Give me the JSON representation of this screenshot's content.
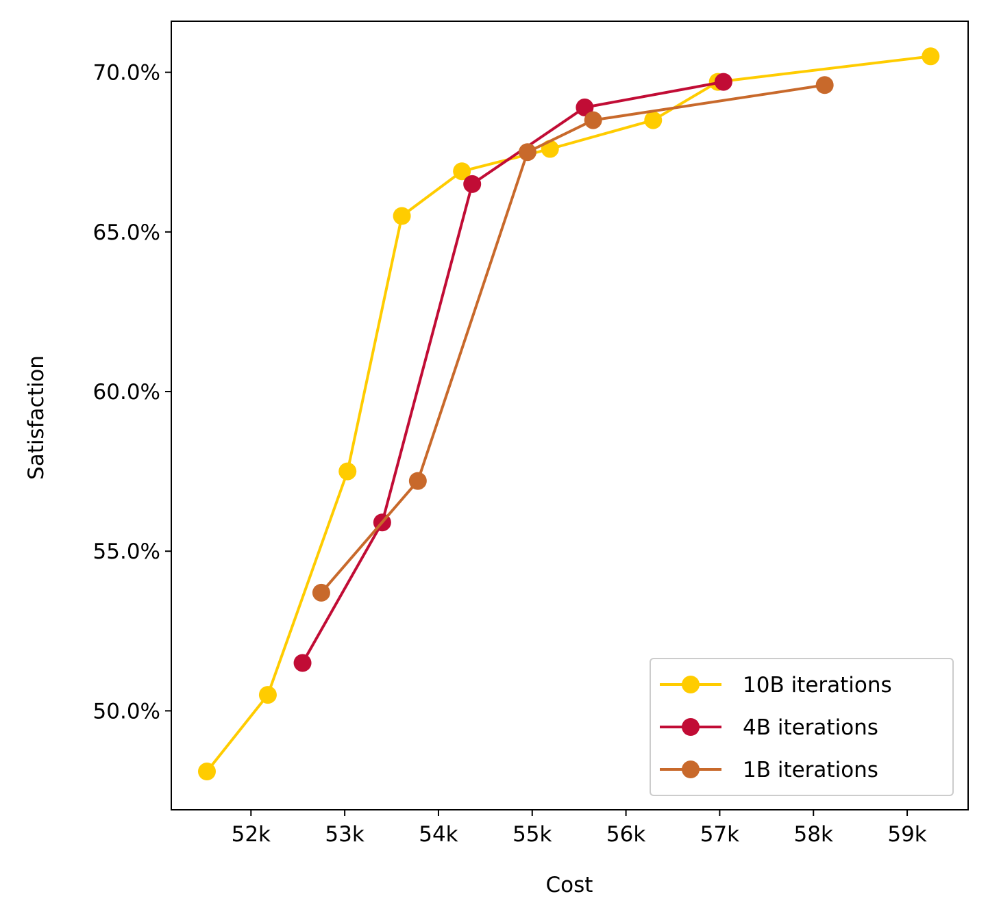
{
  "chart_data": {
    "type": "line",
    "xlabel": "Cost",
    "ylabel": "Satisfaction",
    "xlim": [
      51150,
      59650
    ],
    "ylim": [
      46.9,
      71.6
    ],
    "x_ticks": [
      52000,
      53000,
      54000,
      55000,
      56000,
      57000,
      58000,
      59000
    ],
    "x_tick_labels": [
      "52k",
      "53k",
      "54k",
      "55k",
      "56k",
      "57k",
      "58k",
      "59k"
    ],
    "y_ticks": [
      50,
      55,
      60,
      65,
      70
    ],
    "y_tick_labels": [
      "50.0%",
      "55.0%",
      "60.0%",
      "65.0%",
      "70.0%"
    ],
    "grid": false,
    "legend_position": "bottom-right",
    "series": [
      {
        "name": "10B iterations",
        "color": "#FFCC00",
        "x": [
          51530,
          52180,
          53030,
          53610,
          54250,
          55190,
          56290,
          56980,
          59250
        ],
        "y": [
          48.1,
          50.5,
          57.5,
          65.5,
          66.9,
          67.6,
          68.5,
          69.7,
          70.5
        ]
      },
      {
        "name": "4B iterations",
        "color": "#C10C35",
        "x": [
          52550,
          53400,
          54360,
          55560,
          57040
        ],
        "y": [
          51.5,
          55.9,
          66.5,
          68.9,
          69.7
        ]
      },
      {
        "name": "1B iterations",
        "color": "#C8692B",
        "x": [
          52750,
          53780,
          54950,
          55650,
          58120
        ],
        "y": [
          53.7,
          57.2,
          67.5,
          68.5,
          69.6
        ]
      }
    ]
  }
}
